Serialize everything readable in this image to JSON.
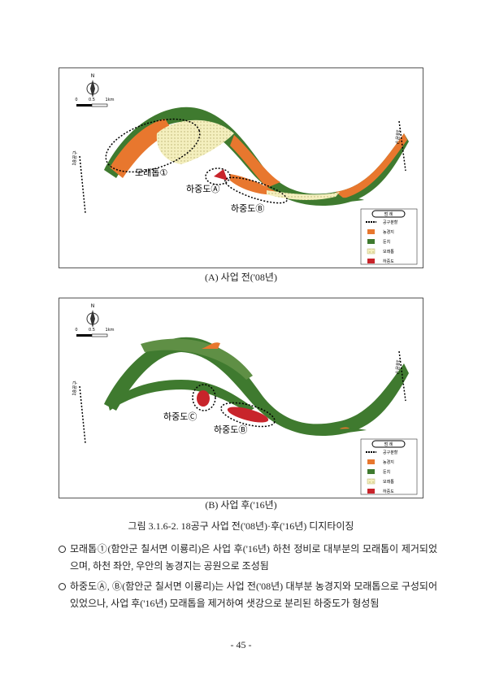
{
  "figures": [
    {
      "compass": "N",
      "scale": [
        "0",
        "0.5",
        "1km"
      ],
      "boundary": "18공구",
      "labels": [
        "모래톱①",
        "하중도Ⓐ",
        "하중도Ⓑ"
      ],
      "legend": {
        "title": "범 례",
        "items": [
          "공구분할",
          "농경지",
          "둔치",
          "모래톱",
          "하중도"
        ]
      },
      "caption": "(A) 사업 전('08년)"
    },
    {
      "compass": "N",
      "scale": [
        "0",
        "0.5",
        "1km"
      ],
      "boundary": "18공구",
      "labels": [
        "하중도Ⓒ",
        "하중도Ⓑ"
      ],
      "legend": {
        "title": "범 례",
        "items": [
          "공구분할",
          "농경지",
          "둔치",
          "모래톱",
          "하중도"
        ]
      },
      "caption": "(B) 사업 후('16년)"
    }
  ],
  "figure_title": "그림 3.1.6-2. 18공구 사업 전('08년)·후('16년) 디지타이징",
  "bullets": [
    "모래톱①(함안군 칠서면 이룡리)은 사업 후('16년) 하천 정비로 대부분의 모래톱이 제거되었으며, 하천 좌안, 우안의 농경지는 공원으로 조성됨",
    "하중도Ⓐ, Ⓑ(함안군 칠서면 이룡리)는 사업 전('08년) 대부분 농경지와 모래톱으로 구성되어 있었으나, 사업 후('16년) 모래톱을 제거하여 샛강으로 분리된 하중도가 형성됨"
  ],
  "page_number": "- 45 -"
}
